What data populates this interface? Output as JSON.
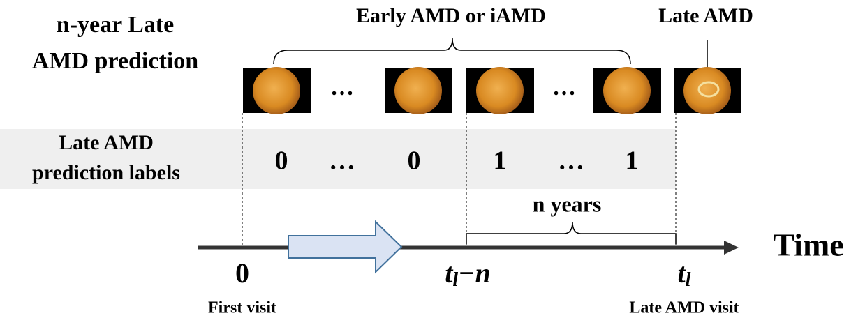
{
  "title": [
    "n-year Late",
    "AMD prediction"
  ],
  "stages": {
    "early": "Early AMD or iAMD",
    "late": "Late AMD"
  },
  "image_gaps": [
    "…",
    "…"
  ],
  "labels_row": {
    "title": [
      "Late AMD",
      "prediction labels"
    ],
    "values": [
      "0",
      "…",
      "0",
      "1",
      "…",
      "1"
    ]
  },
  "timeline": {
    "axis_label": "Time",
    "span": "n years",
    "ticks": [
      {
        "base": "0",
        "caption": "First visit"
      },
      {
        "base": "t",
        "sub": "l",
        "suffix": "−n"
      },
      {
        "base": "t",
        "sub": "l",
        "caption": "Late AMD visit"
      }
    ]
  }
}
